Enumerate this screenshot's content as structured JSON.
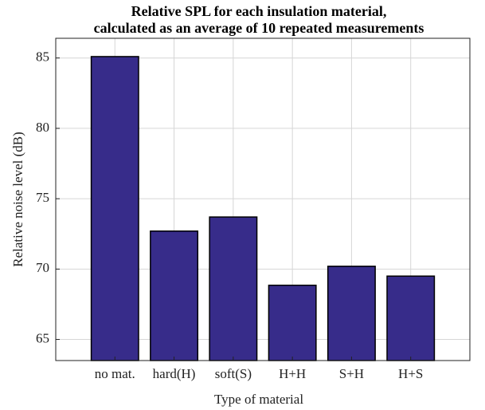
{
  "chart_data": {
    "type": "bar",
    "title": [
      "Relative SPL for each insulation material,",
      "calculated as an average of 10 repeated measurements"
    ],
    "xlabel": "Type of material",
    "ylabel": "Relative noise level (dB)",
    "categories": [
      "no mat.",
      "hard(H)",
      "soft(S)",
      "H+H",
      "S+H",
      "H+S"
    ],
    "values": [
      85.1,
      72.7,
      73.7,
      68.85,
      70.2,
      69.5
    ],
    "color": "#372c8a",
    "ylim": [
      63.5,
      86.4
    ],
    "yticks": [
      65,
      70,
      75,
      80,
      85
    ],
    "grid": true
  }
}
